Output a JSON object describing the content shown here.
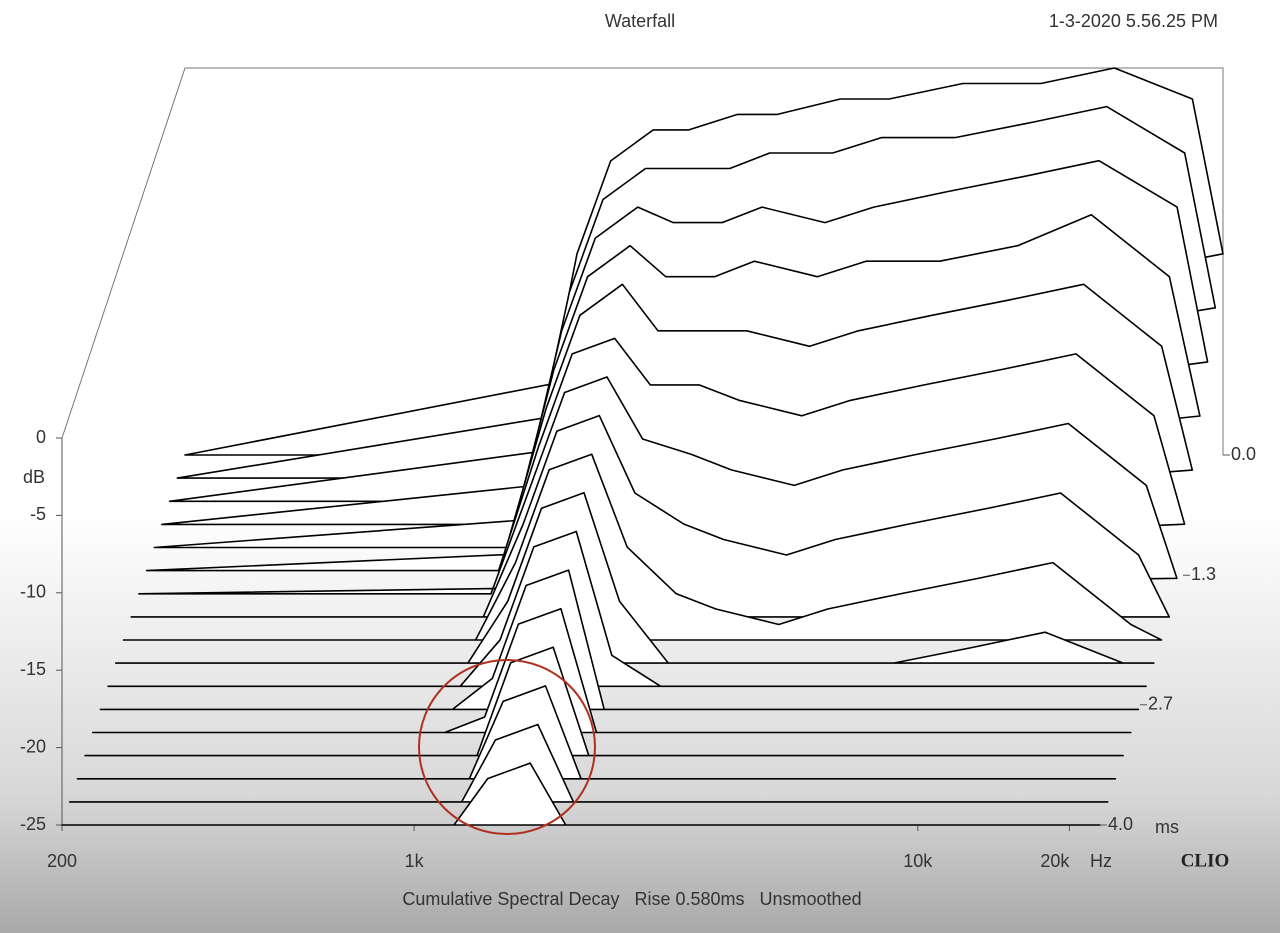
{
  "chart_data": {
    "type": "waterfall",
    "title": "Waterfall",
    "timestamp": "1-3-2020 5.56.25 PM",
    "subtitle": "Cumulative Spectral Decay   Rise 0.580ms   Unsmoothed",
    "brand": "CLIO",
    "y_label": "dB",
    "x_unit": "Hz",
    "z_unit": "ms",
    "x": [
      200,
      1000,
      1200,
      1400,
      1700,
      2000,
      2500,
      3000,
      4000,
      5000,
      7000,
      10000,
      14000,
      20000,
      23000
    ],
    "xlim": [
      200,
      23000
    ],
    "log_x": true,
    "xticks": [
      200,
      {
        "value": 1000,
        "label": "1k"
      },
      {
        "value": 10000,
        "label": "10k"
      },
      {
        "value": 20000,
        "label": "20k"
      }
    ],
    "ylim": [
      -25,
      0
    ],
    "yticks": [
      0,
      -5,
      -10,
      -15,
      -20,
      -25
    ],
    "zlim": [
      0,
      4
    ],
    "zticks": [
      {
        "value": 0,
        "label": "0.0"
      },
      {
        "value": 1.3,
        "label": "1.3"
      },
      {
        "value": 2.7,
        "label": "2.7"
      },
      {
        "value": 4,
        "label": "4.0"
      }
    ],
    "slices": [
      {
        "z": 0,
        "values": [
          -25,
          -25,
          -12,
          -6,
          -4,
          -4,
          -3,
          -3,
          -2,
          -2,
          -1,
          -1,
          0,
          -2,
          -12
        ]
      },
      {
        "z": 0.25,
        "values": [
          -25,
          -25,
          -13,
          -7,
          -5,
          -5,
          -5,
          -4,
          -4,
          -3,
          -3,
          -2,
          -1,
          -4,
          -14
        ]
      },
      {
        "z": 0.5,
        "values": [
          -25,
          -25,
          -14,
          -8,
          -6,
          -7,
          -7,
          -6,
          -7,
          -6,
          -5,
          -4,
          -3,
          -6,
          -16
        ]
      },
      {
        "z": 0.75,
        "values": [
          -25,
          -25,
          -15,
          -9,
          -7,
          -9,
          -9,
          -8,
          -9,
          -8,
          -8,
          -7,
          -5,
          -9,
          -18
        ]
      },
      {
        "z": 1,
        "values": [
          -25,
          -25,
          -16,
          -10,
          -8,
          -11,
          -11,
          -11,
          -12,
          -11,
          -10,
          -9,
          -8,
          -12,
          -20
        ]
      },
      {
        "z": 1.25,
        "values": [
          -25,
          -25,
          -17,
          -11,
          -10,
          -13,
          -13,
          -14,
          -15,
          -14,
          -13,
          -12,
          -11,
          -15,
          -22
        ]
      },
      {
        "z": 1.5,
        "values": [
          -25,
          -25,
          -18,
          -12,
          -11,
          -15,
          -16,
          -17,
          -18,
          -17,
          -16,
          -15,
          -14,
          -18,
          -24
        ]
      },
      {
        "z": 1.75,
        "values": [
          -25,
          -25,
          -19,
          -13,
          -12,
          -17,
          -19,
          -20,
          -21,
          -20,
          -19,
          -18,
          -17,
          -21,
          -25
        ]
      },
      {
        "z": 2,
        "values": [
          -25,
          -25,
          -20,
          -14,
          -13,
          -19,
          -22,
          -23,
          -24,
          -23,
          -22,
          -21,
          -20,
          -24,
          -25
        ]
      },
      {
        "z": 2.25,
        "values": [
          -25,
          -25,
          -21,
          -15,
          -14,
          -21,
          -25,
          -25,
          -25,
          -25,
          -25,
          -24,
          -23,
          -25,
          -25
        ]
      },
      {
        "z": 2.5,
        "values": [
          -25,
          -25,
          -22,
          -16,
          -15,
          -23,
          -25,
          -25,
          -25,
          -25,
          -25,
          -25,
          -25,
          -25,
          -25
        ]
      },
      {
        "z": 2.75,
        "values": [
          -25,
          -25,
          -23,
          -17,
          -16,
          -25,
          -25,
          -25,
          -25,
          -25,
          -25,
          -25,
          -25,
          -25,
          -25
        ]
      },
      {
        "z": 3,
        "values": [
          -25,
          -25,
          -24,
          -18,
          -17,
          -25,
          -25,
          -25,
          -25,
          -25,
          -25,
          -25,
          -25,
          -25,
          -25
        ]
      },
      {
        "z": 3.25,
        "values": [
          -25,
          -25,
          -25,
          -19,
          -18,
          -25,
          -25,
          -25,
          -25,
          -25,
          -25,
          -25,
          -25,
          -25,
          -25
        ]
      },
      {
        "z": 3.5,
        "values": [
          -25,
          -25,
          -25,
          -20,
          -19,
          -25,
          -25,
          -25,
          -25,
          -25,
          -25,
          -25,
          -25,
          -25,
          -25
        ]
      },
      {
        "z": 3.75,
        "values": [
          -25,
          -25,
          -25,
          -21,
          -20,
          -25,
          -25,
          -25,
          -25,
          -25,
          -25,
          -25,
          -25,
          -25,
          -25
        ]
      },
      {
        "z": 4,
        "values": [
          -25,
          -25,
          -25,
          -22,
          -21,
          -25,
          -25,
          -25,
          -25,
          -25,
          -25,
          -25,
          -25,
          -25,
          -25
        ]
      }
    ]
  }
}
